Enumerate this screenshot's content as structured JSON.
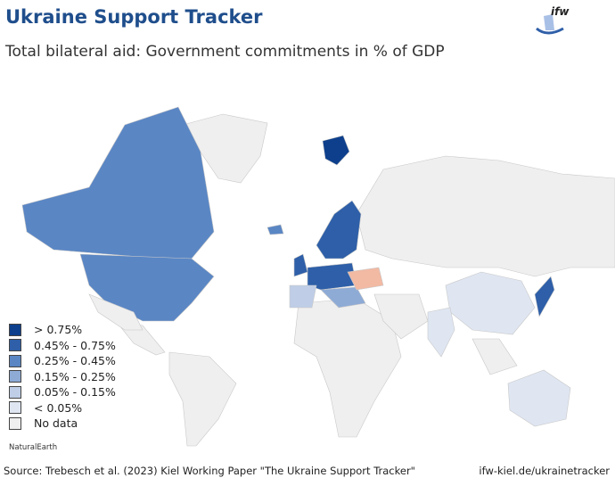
{
  "header": {
    "title": "Ukraine Support Tracker",
    "subtitle": "Total bilateral aid: Government commitments in % of GDP",
    "logo_text": "ifw"
  },
  "legend": [
    {
      "label": "> 0.75%",
      "color": "#0d3f8c"
    },
    {
      "label": "0.45% - 0.75%",
      "color": "#2e5fa8"
    },
    {
      "label": "0.25% - 0.45%",
      "color": "#5a86c4"
    },
    {
      "label": "0.15% - 0.25%",
      "color": "#8eabd6"
    },
    {
      "label": "0.05% - 0.15%",
      "color": "#bfcde6"
    },
    {
      "label": "< 0.05%",
      "color": "#dfe6f2"
    },
    {
      "label": "No data",
      "color": "#efefef"
    }
  ],
  "highlight_color": "#f2b9a3",
  "credit": "NaturalEarth",
  "footer": {
    "source": "Source: Trebesch et al. (2023) Kiel Working Paper \"The Ukraine Support Tracker\"",
    "link": "ifw-kiel.de/ukrainetracker"
  }
}
